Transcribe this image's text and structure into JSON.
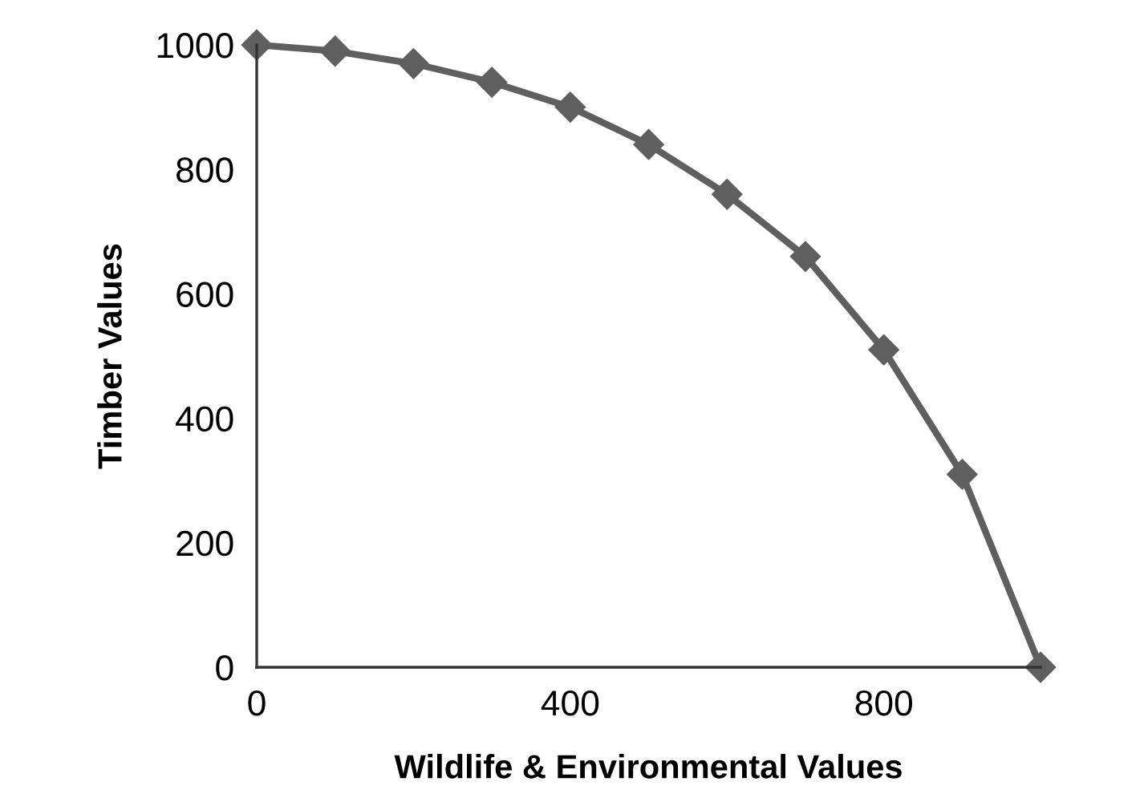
{
  "chart_data": {
    "type": "line",
    "xlabel": "Wildlife & Environmental Values",
    "ylabel": "Timber Values",
    "x": [
      0,
      100,
      200,
      300,
      400,
      500,
      600,
      700,
      800,
      900,
      1000
    ],
    "series": [
      {
        "color": "#5f5f5f",
        "values": [
          1000,
          990,
          970,
          940,
          900,
          840,
          760,
          660,
          510,
          310,
          0
        ]
      }
    ],
    "xlim": [
      0,
      1000
    ],
    "xticks": [
      0,
      400,
      800
    ],
    "ylim": [
      0,
      1000
    ],
    "yticks": [
      0,
      200,
      400,
      600,
      800,
      1000
    ],
    "marker": "diamond",
    "line_style": "solid",
    "grid": false,
    "legend": false
  }
}
